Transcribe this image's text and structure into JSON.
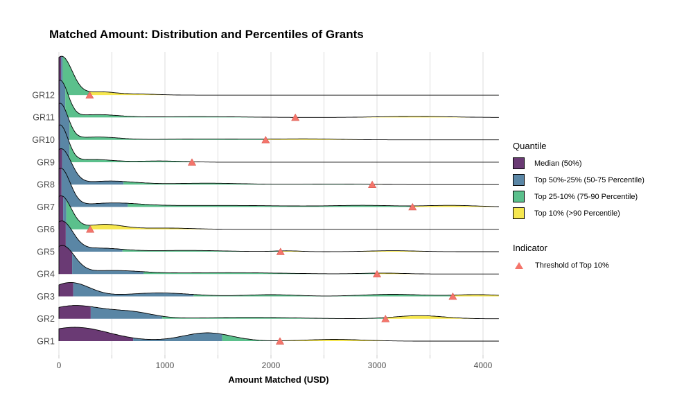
{
  "title": "Matched Amount: Distribution and Percentiles of Grants",
  "x_axis": {
    "label": "Amount Matched (USD)",
    "tick_labels": [
      "0",
      "1000",
      "2000",
      "3000",
      "4000"
    ],
    "tick_values": [
      0,
      1000,
      2000,
      3000,
      4000
    ],
    "minor_tick_step": 500,
    "range": [
      0,
      4150
    ]
  },
  "y_axis": {
    "labels_top_to_bottom": [
      "GR12",
      "GR11",
      "GR10",
      "GR9",
      "GR8",
      "GR7",
      "GR6",
      "GR5",
      "GR4",
      "GR3",
      "GR2",
      "GR1"
    ]
  },
  "legend": {
    "quantile": {
      "title": "Quantile",
      "items": [
        {
          "label": "Median (50%)",
          "color": "#6A3A74"
        },
        {
          "label": "Top 50%-25% (50-75 Percentile)",
          "color": "#5A86A5"
        },
        {
          "label": "Top 25-10% (75-90 Percentile)",
          "color": "#5BC08C"
        },
        {
          "label": "Top 10% (>90 Percentile)",
          "color": "#F6E74F"
        }
      ]
    },
    "indicator": {
      "title": "Indicator",
      "items": [
        {
          "label": "Threshold of Top 10%",
          "marker": "triangle-up",
          "color": "#F4756B"
        }
      ]
    }
  },
  "colors": {
    "median": "#6A3A74",
    "q50_75": "#5A86A5",
    "q75_90": "#5BC08C",
    "top10": "#F6E74F",
    "threshold_marker": "#F4756B",
    "threshold_marker_edge": "#D8564D",
    "outline": "#000000",
    "gridline": "#DCDCDC",
    "tick": "#C9C9C9",
    "axis_text": "#4D4D4D"
  },
  "chart_data": {
    "type": "ridgeline",
    "title": "Matched Amount: Distribution and Percentiles of Grants",
    "xlabel": "Amount Matched (USD)",
    "x_range": [
      0,
      4150
    ],
    "quantile_fill_order": [
      "median",
      "q50_75",
      "q75_90",
      "top10"
    ],
    "groups": [
      {
        "label": "GR12",
        "p50": 20,
        "p75": 35,
        "p90_threshold": 290,
        "shape_bumps": [
          [
            25,
            100,
            56
          ],
          [
            390,
            140,
            4.5
          ],
          [
            750,
            180,
            1.5
          ]
        ]
      },
      {
        "label": "GR11",
        "p50": 10,
        "p75": 60,
        "p90_threshold": 2230,
        "shape_bumps": [
          [
            10,
            75,
            53
          ],
          [
            360,
            200,
            4
          ],
          [
            1300,
            450,
            1.2
          ],
          [
            3350,
            350,
            1.5
          ]
        ]
      },
      {
        "label": "GR10",
        "p50": 10,
        "p75": 100,
        "p90_threshold": 1950,
        "shape_bumps": [
          [
            10,
            75,
            52
          ],
          [
            360,
            200,
            4
          ],
          [
            1400,
            450,
            1.3
          ],
          [
            2350,
            280,
            1.3
          ]
        ]
      },
      {
        "label": "GR9",
        "p50": 10,
        "p75": 100,
        "p90_threshold": 1255,
        "shape_bumps": [
          [
            10,
            75,
            53
          ],
          [
            320,
            180,
            4
          ],
          [
            950,
            220,
            1.8
          ]
        ]
      },
      {
        "label": "GR8",
        "p50": 30,
        "p75": 610,
        "p90_threshold": 2955,
        "shape_bumps": [
          [
            20,
            95,
            51
          ],
          [
            480,
            240,
            5
          ],
          [
            1400,
            350,
            2
          ],
          [
            2600,
            300,
            0.8
          ]
        ]
      },
      {
        "label": "GR7",
        "p50": 25,
        "p75": 650,
        "p90_threshold": 3335,
        "shape_bumps": [
          [
            15,
            90,
            55
          ],
          [
            500,
            260,
            5
          ],
          [
            1500,
            700,
            2.2
          ],
          [
            2900,
            300,
            2
          ],
          [
            3700,
            250,
            2.2
          ]
        ]
      },
      {
        "label": "GR6",
        "p50": 40,
        "p75": 70,
        "p90_threshold": 295,
        "shape_bumps": [
          [
            20,
            95,
            48
          ],
          [
            430,
            170,
            7
          ],
          [
            1000,
            250,
            1.8
          ]
        ]
      },
      {
        "label": "GR5",
        "p50": 65,
        "p75": 600,
        "p90_threshold": 2090,
        "shape_bumps": [
          [
            25,
            105,
            43
          ],
          [
            380,
            220,
            5
          ],
          [
            1200,
            350,
            1.8
          ],
          [
            2150,
            120,
            1.2
          ],
          [
            3150,
            220,
            1.4
          ]
        ]
      },
      {
        "label": "GR4",
        "p50": 125,
        "p75": 800,
        "p90_threshold": 3000,
        "shape_bumps": [
          [
            30,
            115,
            40
          ],
          [
            500,
            280,
            5
          ],
          [
            1600,
            500,
            2
          ],
          [
            3050,
            200,
            1.3
          ]
        ]
      },
      {
        "label": "GR3",
        "p50": 135,
        "p75": 1270,
        "p90_threshold": 3715,
        "shape_bumps": [
          [
            110,
            180,
            20
          ],
          [
            950,
            300,
            5
          ],
          [
            2000,
            250,
            2.5
          ],
          [
            3150,
            300,
            3
          ],
          [
            3950,
            220,
            2.5
          ]
        ]
      },
      {
        "label": "GR2",
        "p50": 300,
        "p75": 975,
        "p90_threshold": 3080,
        "shape_bumps": [
          [
            150,
            280,
            19
          ],
          [
            700,
            200,
            8
          ],
          [
            1800,
            450,
            2
          ],
          [
            3400,
            230,
            4.5
          ]
        ]
      },
      {
        "label": "GR1",
        "p50": 700,
        "p75": 1540,
        "p90_threshold": 2085,
        "shape_bumps": [
          [
            150,
            320,
            20
          ],
          [
            1400,
            230,
            12
          ],
          [
            2600,
            280,
            2.5
          ]
        ]
      }
    ]
  }
}
